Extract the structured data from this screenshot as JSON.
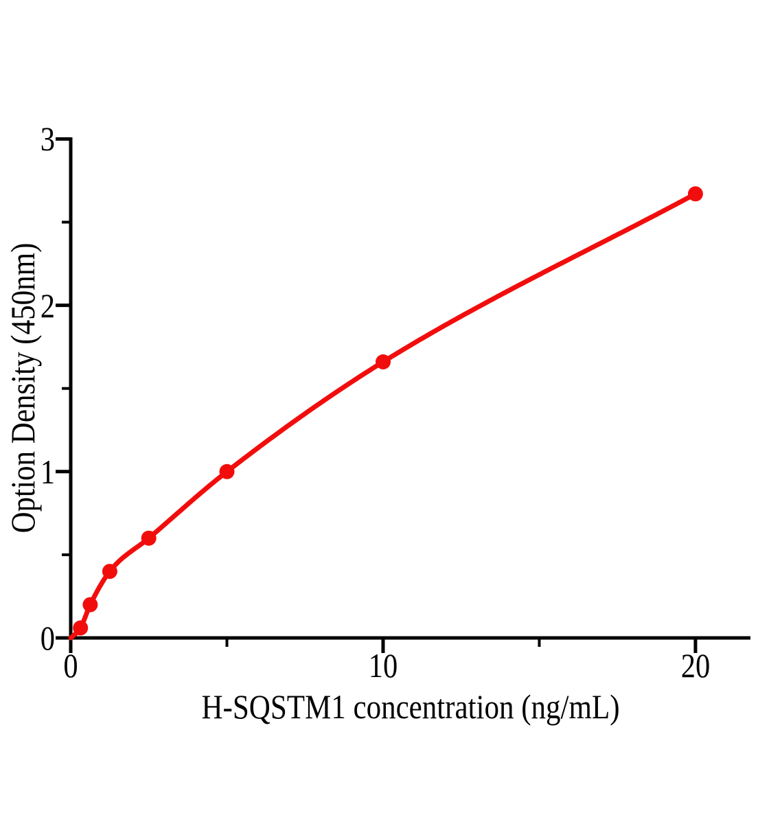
{
  "chart_data": {
    "type": "scatter",
    "title": "",
    "xlabel": "H-SQSTM1 concentration (ng/mL)",
    "ylabel": "Option Density (450nm)",
    "x": [
      0.313,
      0.625,
      1.25,
      2.5,
      5,
      10,
      20
    ],
    "y": [
      0.06,
      0.2,
      0.4,
      0.6,
      1.0,
      1.66,
      2.67
    ],
    "curve_start": [
      0,
      0
    ],
    "x_ticks_major": [
      0,
      10,
      20
    ],
    "x_tick_labels": [
      "0",
      "10",
      "20"
    ],
    "x_ticks_minor": [
      5,
      15
    ],
    "y_ticks_major": [
      0,
      1,
      2,
      3
    ],
    "y_tick_labels": [
      "0",
      "1",
      "2",
      "3"
    ],
    "y_ticks_minor": [
      0.5,
      1.5,
      2.5
    ],
    "xlim": [
      0,
      21.76
    ],
    "ylim": [
      0,
      3.01
    ],
    "grid": false,
    "legend": null,
    "marker": "circle",
    "marker_radius": 11,
    "line_width": 7,
    "colors": {
      "curve": "#f20d0d",
      "axis": "#000000",
      "text": "#000000",
      "background": "#ffffff"
    }
  }
}
